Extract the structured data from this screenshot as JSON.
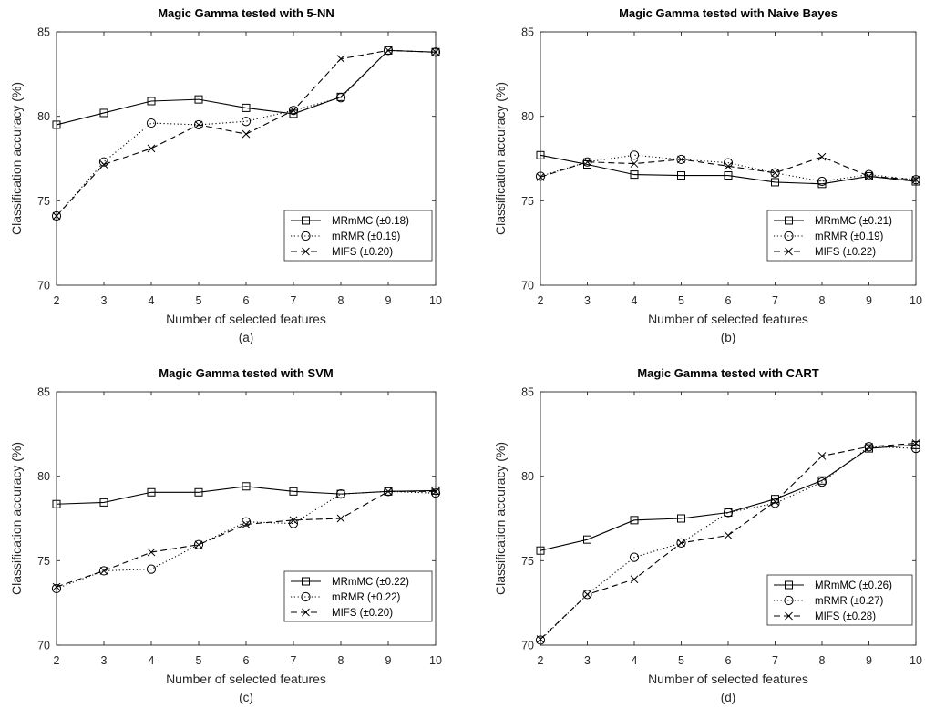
{
  "chart_data": [
    {
      "type": "line",
      "title": "Magic Gamma tested with 5-NN",
      "panel_label": "(a)",
      "xlabel": "Number of selected features",
      "ylabel": "Classification accuracy (%)",
      "xlim": [
        2,
        10
      ],
      "ylim": [
        70,
        85
      ],
      "xticks": [
        2,
        3,
        4,
        5,
        6,
        7,
        8,
        9,
        10
      ],
      "yticks": [
        70,
        75,
        80,
        85
      ],
      "grid": false,
      "legend_position": "bottom-right",
      "x": [
        2,
        3,
        4,
        5,
        6,
        7,
        8,
        9,
        10
      ],
      "series": [
        {
          "name": "MRmMC (±0.18)",
          "marker": "square",
          "line_style": "solid",
          "color": "#000000",
          "values": [
            79.5,
            80.2,
            80.9,
            81.0,
            80.5,
            80.15,
            81.15,
            83.9,
            83.8
          ]
        },
        {
          "name": "mRMR (±0.19)",
          "marker": "circle",
          "line_style": "dotted",
          "color": "#000000",
          "values": [
            74.1,
            77.3,
            79.6,
            79.5,
            79.7,
            80.35,
            81.1,
            83.9,
            83.8
          ]
        },
        {
          "name": "MIFS (±0.20)",
          "marker": "x",
          "line_style": "dashed",
          "color": "#000000",
          "values": [
            74.1,
            77.15,
            78.1,
            79.5,
            78.95,
            80.35,
            83.4,
            83.9,
            83.8
          ]
        }
      ]
    },
    {
      "type": "line",
      "title": "Magic Gamma tested with Naive Bayes",
      "panel_label": "(b)",
      "xlabel": "Number of selected features",
      "ylabel": "Classification accuracy (%)",
      "xlim": [
        2,
        10
      ],
      "ylim": [
        70,
        85
      ],
      "xticks": [
        2,
        3,
        4,
        5,
        6,
        7,
        8,
        9,
        10
      ],
      "yticks": [
        70,
        75,
        80,
        85
      ],
      "grid": false,
      "legend_position": "bottom-right",
      "x": [
        2,
        3,
        4,
        5,
        6,
        7,
        8,
        9,
        10
      ],
      "series": [
        {
          "name": "MRmMC (±0.21)",
          "marker": "square",
          "line_style": "solid",
          "color": "#000000",
          "values": [
            77.7,
            77.15,
            76.55,
            76.5,
            76.5,
            76.1,
            76.0,
            76.45,
            76.15
          ]
        },
        {
          "name": "mRMR (±0.19)",
          "marker": "circle",
          "line_style": "dotted",
          "color": "#000000",
          "values": [
            76.45,
            77.3,
            77.7,
            77.45,
            77.25,
            76.65,
            76.15,
            76.55,
            76.25
          ]
        },
        {
          "name": "MIFS (±0.22)",
          "marker": "x",
          "line_style": "dashed",
          "color": "#000000",
          "values": [
            76.4,
            77.3,
            77.2,
            77.45,
            77.05,
            76.65,
            77.6,
            76.45,
            76.25
          ]
        }
      ]
    },
    {
      "type": "line",
      "title": "Magic Gamma tested with SVM",
      "panel_label": "(c)",
      "xlabel": "Number of selected features",
      "ylabel": "Classification accuracy (%)",
      "xlim": [
        2,
        10
      ],
      "ylim": [
        70,
        85
      ],
      "xticks": [
        2,
        3,
        4,
        5,
        6,
        7,
        8,
        9,
        10
      ],
      "yticks": [
        70,
        75,
        80,
        85
      ],
      "grid": false,
      "legend_position": "bottom-right",
      "x": [
        2,
        3,
        4,
        5,
        6,
        7,
        8,
        9,
        10
      ],
      "series": [
        {
          "name": "MRmMC (±0.22)",
          "marker": "square",
          "line_style": "solid",
          "color": "#000000",
          "values": [
            78.35,
            78.45,
            79.05,
            79.05,
            79.4,
            79.1,
            78.95,
            79.1,
            79.15
          ]
        },
        {
          "name": "mRMR (±0.22)",
          "marker": "circle",
          "line_style": "dotted",
          "color": "#000000",
          "values": [
            73.35,
            74.4,
            74.5,
            75.95,
            77.3,
            77.2,
            78.95,
            79.1,
            79.0
          ]
        },
        {
          "name": "MIFS (±0.20)",
          "marker": "x",
          "line_style": "dashed",
          "color": "#000000",
          "values": [
            73.45,
            74.4,
            75.5,
            75.95,
            77.15,
            77.4,
            77.5,
            79.1,
            79.1
          ]
        }
      ]
    },
    {
      "type": "line",
      "title": "Magic Gamma tested with CART",
      "panel_label": "(d)",
      "xlabel": "Number of selected features",
      "ylabel": "Classification accuracy (%)",
      "xlim": [
        2,
        10
      ],
      "ylim": [
        70,
        85
      ],
      "xticks": [
        2,
        3,
        4,
        5,
        6,
        7,
        8,
        9,
        10
      ],
      "yticks": [
        70,
        75,
        80,
        85
      ],
      "grid": false,
      "legend_position": "bottom-right",
      "x": [
        2,
        3,
        4,
        5,
        6,
        7,
        8,
        9,
        10
      ],
      "series": [
        {
          "name": "MRmMC (±0.26)",
          "marker": "square",
          "line_style": "solid",
          "color": "#000000",
          "values": [
            75.6,
            76.25,
            77.4,
            77.5,
            77.85,
            78.65,
            79.75,
            81.65,
            81.85
          ]
        },
        {
          "name": "mRMR (±0.27)",
          "marker": "circle",
          "line_style": "dotted",
          "color": "#000000",
          "values": [
            70.3,
            73.0,
            75.2,
            76.05,
            77.85,
            78.4,
            79.65,
            81.75,
            81.65
          ]
        },
        {
          "name": "MIFS (±0.28)",
          "marker": "x",
          "line_style": "dashed",
          "color": "#000000",
          "values": [
            70.35,
            73.0,
            73.9,
            76.05,
            76.5,
            78.5,
            81.2,
            81.75,
            81.95
          ]
        }
      ]
    }
  ]
}
